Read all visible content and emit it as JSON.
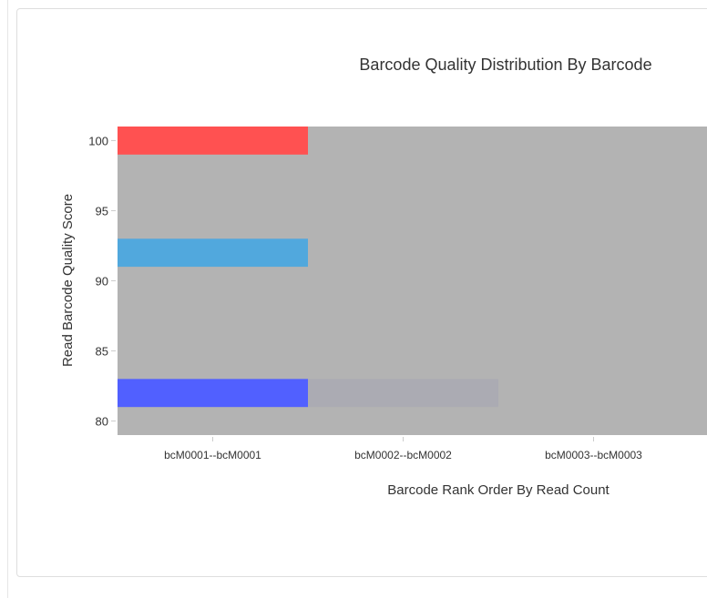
{
  "chart_data": {
    "type": "heatmap",
    "title": "Barcode Quality Distribution By Barcode",
    "xlabel": "Barcode Rank Order By Read Count",
    "ylabel": "Read Barcode Quality Score",
    "categories": [
      "bcM0001--bcM0001",
      "bcM0002--bcM0002",
      "bcM0003--bcM0003"
    ],
    "ylim": [
      79,
      101
    ],
    "yticks": [
      80,
      85,
      90,
      95,
      100
    ],
    "background_color": "#b3b3b3",
    "grid": false,
    "legend": "none",
    "cells": [
      {
        "category": "bcM0001--bcM0001",
        "y0": 99,
        "y1": 101,
        "color": "#ff5151"
      },
      {
        "category": "bcM0001--bcM0001",
        "y0": 91,
        "y1": 93,
        "color": "#51a8dd"
      },
      {
        "category": "bcM0001--bcM0001",
        "y0": 81,
        "y1": 83,
        "color": "#5160ff"
      },
      {
        "category": "bcM0002--bcM0002",
        "y0": 81,
        "y1": 83,
        "color": "#ababb3"
      }
    ]
  }
}
